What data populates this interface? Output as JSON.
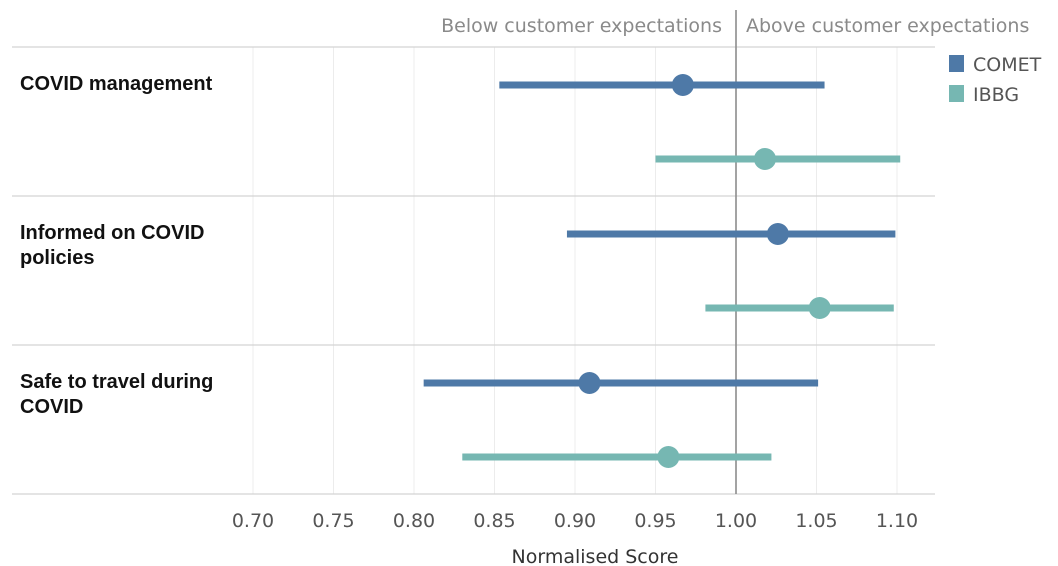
{
  "chart_data": {
    "type": "range-dot",
    "xlabel": "Normalised Score",
    "xlim": [
      0.6,
      1.12
    ],
    "x_ticks": [
      "0.70",
      "0.75",
      "0.80",
      "0.85",
      "0.90",
      "0.95",
      "1.00",
      "1.05",
      "1.10"
    ],
    "reference_line": 1.0,
    "annotations": {
      "below": "Below customer expectations",
      "above": "Above customer expectations"
    },
    "legend_position": "top-right",
    "legend": [
      {
        "name": "COMET",
        "color": "#4e79a7"
      },
      {
        "name": "IBBG",
        "color": "#76b7b2"
      }
    ],
    "categories": [
      {
        "label": [
          "COVID management"
        ],
        "series": [
          {
            "name": "COMET",
            "low": 0.853,
            "point": 0.967,
            "high": 1.055
          },
          {
            "name": "IBBG",
            "low": 0.95,
            "point": 1.018,
            "high": 1.102
          }
        ]
      },
      {
        "label": [
          "Informed on COVID",
          "policies"
        ],
        "series": [
          {
            "name": "COMET",
            "low": 0.895,
            "point": 1.026,
            "high": 1.099
          },
          {
            "name": "IBBG",
            "low": 0.981,
            "point": 1.052,
            "high": 1.098
          }
        ]
      },
      {
        "label": [
          "Safe to travel during",
          "COVID"
        ],
        "series": [
          {
            "name": "COMET",
            "low": 0.806,
            "point": 0.909,
            "high": 1.051
          },
          {
            "name": "IBBG",
            "low": 0.83,
            "point": 0.958,
            "high": 1.022
          }
        ]
      }
    ]
  }
}
